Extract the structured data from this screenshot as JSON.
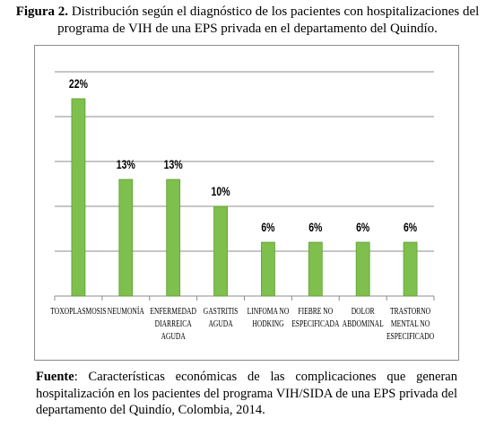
{
  "caption": {
    "label": "Figura 2.",
    "text": "Distribución según el diagnóstico de los pacientes con hospitalizaciones del programa de VIH de una EPS privada en el departamento del Quindío."
  },
  "chart_data": {
    "type": "bar",
    "categories": [
      [
        "TOXOPLASMOSIS"
      ],
      [
        "NEUMONÍA"
      ],
      [
        "ENFERMEDAD",
        "DIARREICA",
        "AGUDA"
      ],
      [
        "GASTRITIS",
        "AGUDA"
      ],
      [
        "LINFOMA NO",
        "HODKING"
      ],
      [
        "FIEBRE NO",
        "ESPECIFICADA"
      ],
      [
        "DOLOR",
        "ABDOMINAL"
      ],
      [
        "TRASTORNO",
        "MENTAL NO",
        "ESPECIFICADO"
      ]
    ],
    "values": [
      22,
      13,
      13,
      10,
      6,
      6,
      6,
      6
    ],
    "data_labels": [
      "22%",
      "13%",
      "13%",
      "10%",
      "6%",
      "6%",
      "6%",
      "6%"
    ],
    "ylim": [
      0,
      25
    ],
    "grid": true,
    "colors": {
      "bar": "#7fbf4d",
      "bar_edge": "#5f9e36",
      "grid": "#8c8c8c"
    }
  },
  "source": {
    "label": "Fuente",
    "text": ": Características económicas de las complicaciones que generan hospitalización en los pacientes del programa VIH/SIDA de una EPS privada del departamento del Quindío, Colombia, 2014."
  }
}
